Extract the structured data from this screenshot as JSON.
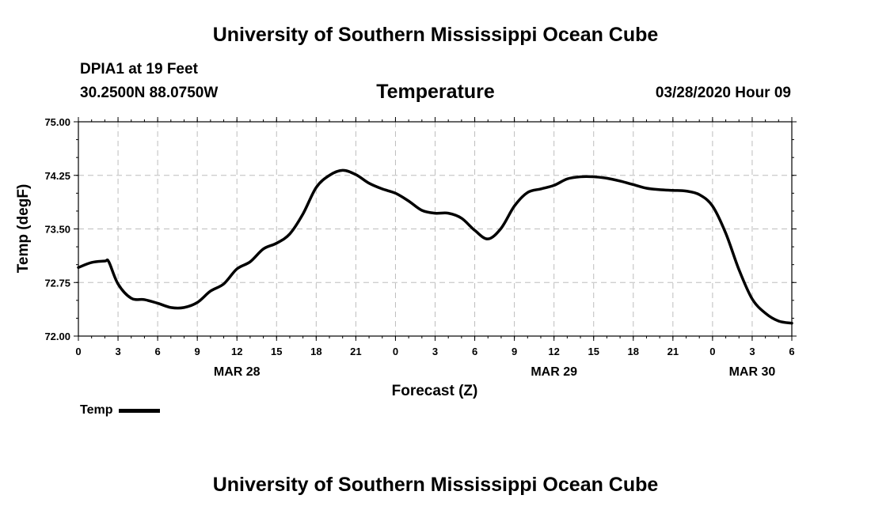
{
  "header": {
    "title": "University of Southern Mississippi Ocean Cube",
    "station": "DPIA1 at 19 Feet",
    "coords": "30.2500N 88.0750W",
    "variable": "Temperature",
    "datetime": "03/28/2020 Hour 09"
  },
  "footer": {
    "title": "University of Southern Mississippi Ocean Cube"
  },
  "legend": {
    "label": "Temp",
    "color": "#000000"
  },
  "chart_data": {
    "type": "line",
    "title": "Temperature",
    "xlabel": "Forecast (Z)",
    "ylabel": "Temp (degF)",
    "ylim": [
      72.0,
      75.0
    ],
    "xlim": [
      0,
      54
    ],
    "grid": true,
    "y_ticks": [
      "72.00",
      "72.75",
      "73.50",
      "74.25",
      "75.00"
    ],
    "x_tick_labels": [
      "0",
      "3",
      "6",
      "9",
      "12",
      "15",
      "18",
      "21",
      "0",
      "3",
      "6",
      "9",
      "12",
      "15",
      "18",
      "21",
      "0",
      "3",
      "6"
    ],
    "date_labels": [
      {
        "hour": 12,
        "label": "MAR 28"
      },
      {
        "hour": 36,
        "label": "MAR 29"
      },
      {
        "hour": 51,
        "label": "MAR 30"
      }
    ],
    "series": [
      {
        "name": "Temp",
        "x": [
          0,
          1,
          2,
          2.3,
          3,
          4,
          5,
          6,
          7,
          8,
          9,
          10,
          11,
          12,
          13,
          14,
          15,
          16,
          17,
          18,
          19,
          20,
          21,
          22,
          23,
          24,
          25,
          26,
          27,
          28,
          29,
          30,
          31,
          32,
          33,
          34,
          35,
          36,
          37,
          38,
          39,
          40,
          41,
          42,
          43,
          44,
          45,
          46,
          47,
          48,
          49,
          50,
          51,
          52,
          53,
          54
        ],
        "values": [
          72.96,
          73.03,
          73.05,
          73.04,
          72.73,
          72.53,
          72.51,
          72.46,
          72.4,
          72.4,
          72.47,
          72.63,
          72.73,
          72.94,
          73.04,
          73.22,
          73.3,
          73.43,
          73.71,
          74.08,
          74.25,
          74.32,
          74.26,
          74.14,
          74.06,
          74.0,
          73.89,
          73.76,
          73.72,
          73.72,
          73.65,
          73.48,
          73.36,
          73.51,
          73.82,
          74.01,
          74.06,
          74.11,
          74.2,
          74.23,
          74.23,
          74.21,
          74.17,
          74.12,
          74.07,
          74.05,
          74.04,
          74.03,
          73.98,
          73.82,
          73.44,
          72.93,
          72.52,
          72.32,
          72.21,
          72.18
        ]
      }
    ]
  }
}
